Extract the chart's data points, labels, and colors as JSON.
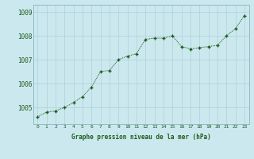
{
  "hours": [
    0,
    1,
    2,
    3,
    4,
    5,
    6,
    7,
    8,
    9,
    10,
    11,
    12,
    13,
    14,
    15,
    16,
    17,
    18,
    19,
    20,
    21,
    22,
    23
  ],
  "pressure": [
    1004.6,
    1004.8,
    1004.85,
    1005.0,
    1005.2,
    1005.45,
    1005.85,
    1006.5,
    1006.55,
    1007.0,
    1007.15,
    1007.25,
    1007.85,
    1007.9,
    1007.9,
    1008.0,
    1007.55,
    1007.45,
    1007.5,
    1007.55,
    1007.6,
    1008.0,
    1008.3,
    1008.85
  ],
  "line_color": "#1a5c1a",
  "marker_color": "#1a5c1a",
  "bg_color": "#cce8ef",
  "grid_color": "#b0cfd8",
  "xlabel": "Graphe pression niveau de la mer (hPa)",
  "xlabel_color": "#1a5c1a",
  "ylabel_ticks": [
    1005,
    1006,
    1007,
    1008,
    1009
  ],
  "ylim": [
    1004.3,
    1009.3
  ],
  "xlim": [
    -0.5,
    23.5
  ]
}
